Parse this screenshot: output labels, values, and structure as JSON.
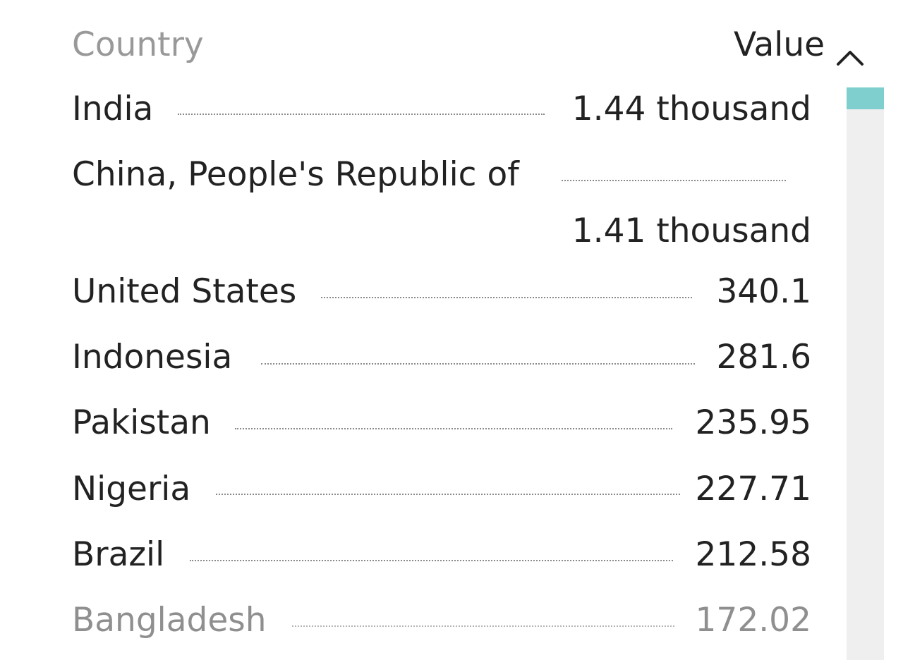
{
  "header": {
    "country_label": "Country",
    "value_label": "Value",
    "sort_icon": "chevron-up-icon"
  },
  "rows": [
    {
      "country": "India",
      "value": "1.44 thousand"
    },
    {
      "country": "China, People's Republic of",
      "value": "1.41 thousand"
    },
    {
      "country": "United States",
      "value": "340.1"
    },
    {
      "country": "Indonesia",
      "value": "281.6"
    },
    {
      "country": "Pakistan",
      "value": "235.95"
    },
    {
      "country": "Nigeria",
      "value": "227.71"
    },
    {
      "country": "Brazil",
      "value": "212.58"
    },
    {
      "country": "Bangladesh",
      "value": "172.02"
    }
  ],
  "colors": {
    "scroll_thumb": "#7fcfcf",
    "scroll_track": "#efefef",
    "header_inactive": "#999999",
    "text": "#222222"
  }
}
